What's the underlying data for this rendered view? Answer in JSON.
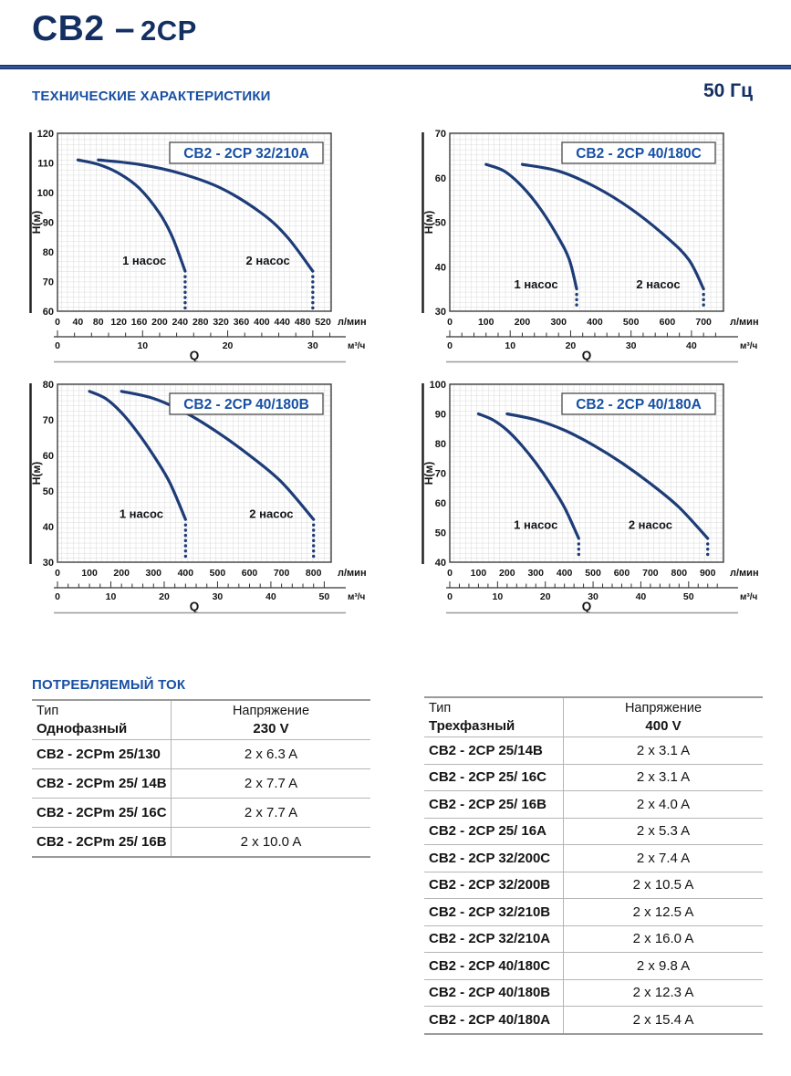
{
  "page": {
    "title_part1": "CB2 –",
    "title_part2": "2CP",
    "section_technical": "ТЕХНИЧЕСКИЕ ХАРАКТЕРИСТИКИ",
    "frequency": "50 Гц",
    "ylabel": "H(м)",
    "xlabel": "Q",
    "x_unit_primary": "л/мин",
    "x_unit_secondary": "м³/ч",
    "lmin_per_m3h": 16.6667
  },
  "colors": {
    "navy_title": "#142f62",
    "heading_blue": "#1750a4",
    "curve_navy": "#1d3c78",
    "grid_line": "#d9d9d9",
    "plot_border": "#3f3f3f",
    "axis_text": "#141414",
    "table_line": "#b5b5b5",
    "chart_bottom_rule": "#9a9a9a"
  },
  "chart_data": [
    {
      "id": "c1",
      "type": "line",
      "title": "CB2 - 2CP 32/210A",
      "ylabel": "H(м)",
      "xlabel": "Q",
      "ylim": [
        60,
        120
      ],
      "ytick_step": 10,
      "xlim": [
        0,
        536
      ],
      "xtick_step": 40,
      "xtick_max": 520,
      "m3h_majors": [
        0,
        10,
        20,
        30
      ],
      "m3h_minor_step": 2,
      "m3h_minor_max": 32,
      "series": [
        {
          "name": "1 насос",
          "points": [
            [
              40,
              111
            ],
            [
              80,
              109.5
            ],
            [
              120,
              106.5
            ],
            [
              160,
              101.5
            ],
            [
              200,
              93
            ],
            [
              225,
              85
            ],
            [
              250,
              73.5
            ]
          ],
          "dotted_to": 61
        },
        {
          "name": "2 насос",
          "points": [
            [
              80,
              111
            ],
            [
              160,
              109.5
            ],
            [
              240,
              106.5
            ],
            [
              320,
              101.5
            ],
            [
              400,
              93
            ],
            [
              450,
              85
            ],
            [
              500,
              73.5
            ]
          ],
          "dotted_to": 61
        }
      ],
      "series_labels": [
        {
          "text": "1 насос",
          "x": 170,
          "y": 77
        },
        {
          "text": "2 насос",
          "x": 412,
          "y": 77
        }
      ]
    },
    {
      "id": "c2",
      "type": "line",
      "title": "CB2 - 2CP 40/180C",
      "ylabel": "H(м)",
      "xlabel": "Q",
      "ylim": [
        30,
        70
      ],
      "ytick_step": 10,
      "xlim": [
        0,
        755
      ],
      "xtick_step": 100,
      "xtick_max": 700,
      "m3h_majors": [
        0,
        10,
        20,
        30,
        40
      ],
      "m3h_minor_step": 2,
      "m3h_minor_max": 44,
      "series": [
        {
          "name": "1 насос",
          "points": [
            [
              100,
              63
            ],
            [
              150,
              61.5
            ],
            [
              200,
              58
            ],
            [
              250,
              53
            ],
            [
              300,
              46.5
            ],
            [
              330,
              41.5
            ],
            [
              350,
              35
            ]
          ],
          "dotted_to": 31
        },
        {
          "name": "2 насос",
          "points": [
            [
              200,
              63
            ],
            [
              300,
              61.5
            ],
            [
              400,
              58
            ],
            [
              500,
              53
            ],
            [
              600,
              46.5
            ],
            [
              660,
              41.5
            ],
            [
              700,
              35
            ]
          ],
          "dotted_to": 31
        }
      ],
      "series_labels": [
        {
          "text": "1 насос",
          "x": 238,
          "y": 36
        },
        {
          "text": "2 насос",
          "x": 575,
          "y": 36
        }
      ]
    },
    {
      "id": "c3",
      "type": "line",
      "title": "CB2 - 2CP 40/180B",
      "ylabel": "H(м)",
      "xlabel": "Q",
      "ylim": [
        30,
        80
      ],
      "ytick_step": 10,
      "xlim": [
        0,
        855
      ],
      "xtick_step": 100,
      "xtick_max": 800,
      "m3h_majors": [
        0,
        10,
        20,
        30,
        40,
        50
      ],
      "m3h_minor_step": 2,
      "m3h_minor_max": 50,
      "series": [
        {
          "name": "1 насос",
          "points": [
            [
              100,
              78
            ],
            [
              150,
              76
            ],
            [
              200,
              72
            ],
            [
              250,
              66.5
            ],
            [
              300,
              60
            ],
            [
              350,
              52.5
            ],
            [
              400,
              42
            ]
          ],
          "dotted_to": 31
        },
        {
          "name": "2 насос",
          "points": [
            [
              200,
              78
            ],
            [
              300,
              76
            ],
            [
              400,
              72
            ],
            [
              500,
              66.5
            ],
            [
              600,
              60
            ],
            [
              700,
              52.5
            ],
            [
              800,
              42
            ]
          ],
          "dotted_to": 31
        }
      ],
      "series_labels": [
        {
          "text": "1 насос",
          "x": 262,
          "y": 43.5
        },
        {
          "text": "2 насос",
          "x": 668,
          "y": 43.5
        }
      ]
    },
    {
      "id": "c4",
      "type": "line",
      "title": "CB2 - 2CP 40/180A",
      "ylabel": "H(м)",
      "xlabel": "Q",
      "ylim": [
        40,
        100
      ],
      "ytick_step": 10,
      "xlim": [
        0,
        955
      ],
      "xtick_step": 100,
      "xtick_max": 900,
      "m3h_majors": [
        0,
        10,
        20,
        30,
        40,
        50
      ],
      "m3h_minor_step": 2,
      "m3h_minor_max": 56,
      "series": [
        {
          "name": "1 насос",
          "points": [
            [
              100,
              90
            ],
            [
              150,
              88
            ],
            [
              200,
              84.5
            ],
            [
              250,
              79.5
            ],
            [
              300,
              73.5
            ],
            [
              350,
              66.5
            ],
            [
              400,
              58.5
            ],
            [
              450,
              48
            ]
          ],
          "dotted_to": 41
        },
        {
          "name": "2 насос",
          "points": [
            [
              200,
              90
            ],
            [
              300,
              88
            ],
            [
              400,
              84.5
            ],
            [
              500,
              79.5
            ],
            [
              600,
              73.5
            ],
            [
              700,
              66.5
            ],
            [
              800,
              58.5
            ],
            [
              900,
              48
            ]
          ],
          "dotted_to": 41
        }
      ],
      "series_labels": [
        {
          "text": "1 насос",
          "x": 300,
          "y": 52.5
        },
        {
          "text": "2 насос",
          "x": 700,
          "y": 52.5
        }
      ]
    }
  ],
  "current_section": {
    "heading": "ПОТРЕБЛЯЕМЫЙ ТОК",
    "tables": [
      {
        "type_label": "Тип",
        "phase": "Однофазный",
        "voltage_label": "Напряжение",
        "voltage": "230 V",
        "rows": [
          [
            "CB2 - 2CPm 25/130",
            "2 x 6.3 A"
          ],
          [
            "CB2 - 2CPm 25/ 14B",
            "2 x 7.7 A"
          ],
          [
            "CB2 - 2CPm 25/ 16C",
            "2 x 7.7 A"
          ],
          [
            "CB2 - 2CPm 25/ 16B",
            "2 x 10.0 A"
          ]
        ]
      },
      {
        "type_label": "Тип",
        "phase": "Трехфазный",
        "voltage_label": "Напряжение",
        "voltage": "400 V",
        "rows": [
          [
            "CB2 - 2CP 25/14B",
            "2 x 3.1 A"
          ],
          [
            "CB2 - 2CP 25/ 16C",
            "2 x 3.1 A"
          ],
          [
            "CB2 - 2CP 25/ 16B",
            "2 x 4.0 A"
          ],
          [
            "CB2 - 2CP 25/ 16A",
            "2 x 5.3 A"
          ],
          [
            "CB2 - 2CP 32/200C",
            "2 x 7.4 A"
          ],
          [
            "CB2 - 2CP 32/200B",
            "2 x 10.5 A"
          ],
          [
            "CB2 - 2CP 32/210B",
            "2 x 12.5 A"
          ],
          [
            "CB2 - 2CP 32/210A",
            "2 x 16.0 A"
          ],
          [
            "CB2 - 2CP 40/180C",
            "2 x 9.8 A"
          ],
          [
            "CB2 - 2CP 40/180B",
            "2 x 12.3 A"
          ],
          [
            "CB2 - 2CP 40/180A",
            "2 x 15.4 A"
          ]
        ]
      }
    ]
  }
}
